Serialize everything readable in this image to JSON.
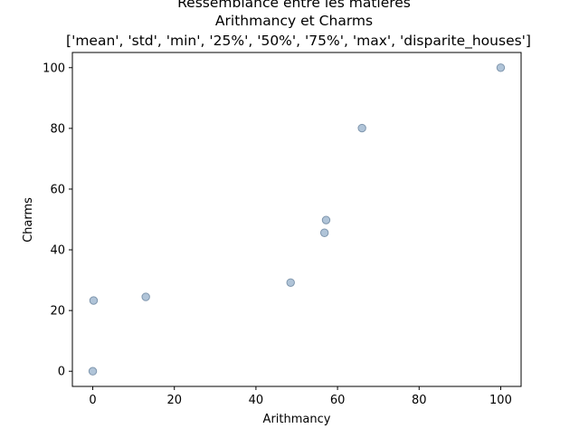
{
  "chart_data": {
    "type": "scatter",
    "title_lines": [
      "Ressemblance entre les matières",
      "Arithmancy et Charms",
      "['mean', 'std', 'min', '25%', '50%', '75%', 'max', 'disparite_houses']"
    ],
    "xlabel": "Arithmancy",
    "ylabel": "Charms",
    "xlim": [
      -5,
      105
    ],
    "ylim": [
      -5,
      105
    ],
    "xticks": [
      0,
      20,
      40,
      60,
      80,
      100
    ],
    "yticks": [
      0,
      20,
      40,
      60,
      80,
      100
    ],
    "grid": false,
    "marker_fill": "#b0c4d8",
    "marker_edge": "#7f96ad",
    "points": [
      {
        "x": 0,
        "y": 0
      },
      {
        "x": 0.2,
        "y": 23.3
      },
      {
        "x": 13.0,
        "y": 24.5
      },
      {
        "x": 48.5,
        "y": 29.2
      },
      {
        "x": 56.8,
        "y": 45.6
      },
      {
        "x": 57.2,
        "y": 49.8
      },
      {
        "x": 66.0,
        "y": 80.1
      },
      {
        "x": 100,
        "y": 100
      }
    ]
  }
}
